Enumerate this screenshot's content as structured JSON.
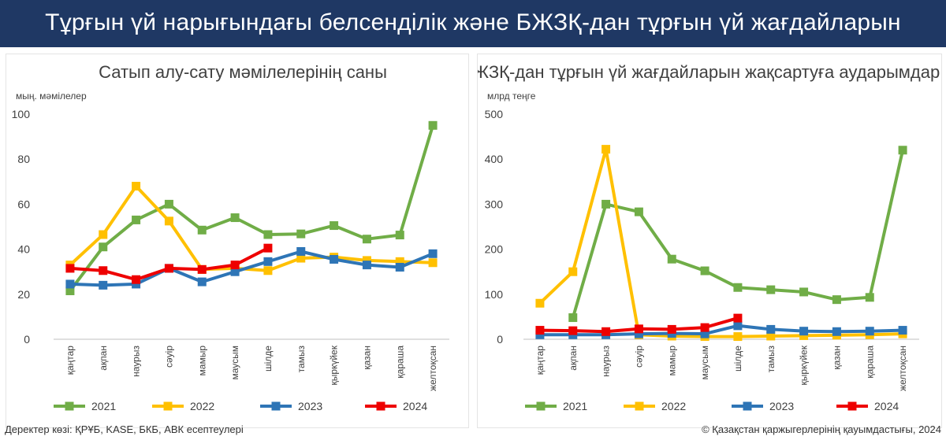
{
  "header": {
    "title": "Тұрғын үй нарығындағы белсенділік және БЖЗҚ-дан тұрғын үй жағдайларын"
  },
  "footer": {
    "source": "Деректер көзі: ҚРҰБ, KASE, БКБ, АВК есептеулері",
    "copyright": "© Қазақстан қаржыгерлерінің қауымдастығы, 2024"
  },
  "colors": {
    "2021": "#70ad47",
    "2022": "#ffc000",
    "2023": "#2e75b6",
    "2024": "#ee0000"
  },
  "chart_data": [
    {
      "type": "line",
      "title": "Сатып алу-сату мәмілелерінің саны",
      "ylabel": "мың. мәмілелер",
      "xlabel": "",
      "ylim": [
        0,
        100
      ],
      "yticks": [
        0,
        20,
        40,
        60,
        80,
        100
      ],
      "grid": false,
      "legend": "bottom",
      "categories": [
        "қаңтар",
        "ақпан",
        "наурыз",
        "сәуір",
        "мамыр",
        "маусым",
        "шілде",
        "тамыз",
        "қыркүйек",
        "қазан",
        "қараша",
        "желтоқсан"
      ],
      "series": [
        {
          "name": "2021",
          "values": [
            21.5,
            41,
            53,
            60,
            48.5,
            54,
            46.5,
            46.8,
            50.5,
            44.5,
            46.3,
            95
          ]
        },
        {
          "name": "2022",
          "values": [
            33,
            46.5,
            68,
            52.5,
            31,
            31.5,
            30.5,
            36,
            36.5,
            35,
            34.5,
            34
          ]
        },
        {
          "name": "2023",
          "values": [
            24.5,
            24,
            24.5,
            31.5,
            25.5,
            30,
            34.5,
            39,
            35.5,
            33,
            32,
            38
          ]
        },
        {
          "name": "2024",
          "values": [
            31.5,
            30.5,
            26.5,
            31.5,
            31,
            33,
            40.5,
            null,
            null,
            null,
            null,
            null
          ]
        }
      ]
    },
    {
      "type": "line",
      "title": "ЖЗҚ-дан тұрғын үй жағдайларын жақсартуға аударымдар",
      "ylabel": "млрд теңге",
      "xlabel": "",
      "ylim": [
        0,
        500
      ],
      "yticks": [
        0,
        100,
        200,
        300,
        400,
        500
      ],
      "grid": false,
      "legend": "bottom",
      "categories": [
        "қаңтар",
        "ақпан",
        "наурыз",
        "сәуір",
        "мамыр",
        "маусым",
        "шілде",
        "тамыз",
        "қыркүйек",
        "қазан",
        "қараша",
        "желтоқсан"
      ],
      "series": [
        {
          "name": "2021",
          "values": [
            null,
            48,
            300,
            283,
            178,
            152,
            115,
            110,
            105,
            88,
            93,
            420
          ]
        },
        {
          "name": "2022",
          "values": [
            80,
            150,
            422,
            10,
            7,
            6,
            6,
            7,
            8,
            9,
            10,
            12
          ]
        },
        {
          "name": "2023",
          "values": [
            10,
            10,
            10,
            12,
            13,
            12,
            30,
            22,
            18,
            17,
            18,
            20
          ]
        },
        {
          "name": "2024",
          "values": [
            20,
            19,
            17,
            23,
            22,
            26,
            47,
            null,
            null,
            null,
            null,
            null
          ]
        }
      ]
    }
  ]
}
